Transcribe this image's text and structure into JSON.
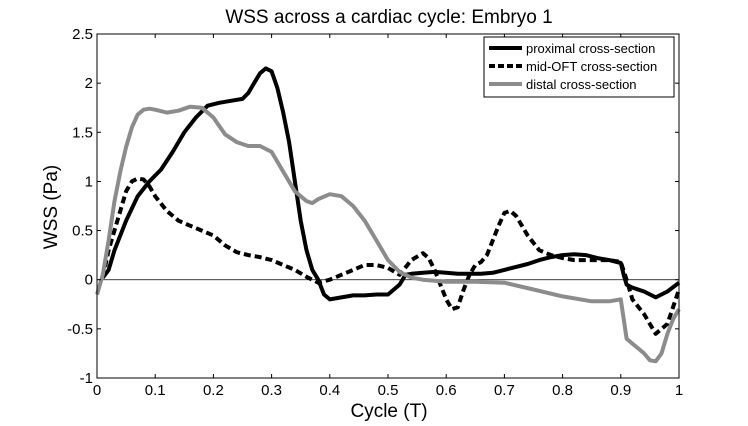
{
  "chart_data": {
    "type": "line",
    "title": "WSS across a cardiac cycle: Embryo 1",
    "xlabel": "Cycle (T)",
    "ylabel": "WSS (Pa)",
    "xlim": [
      0,
      1
    ],
    "ylim": [
      -1,
      2.5
    ],
    "x_ticks": [
      0,
      0.1,
      0.2,
      0.3,
      0.4,
      0.5,
      0.6,
      0.7,
      0.8,
      0.9,
      1
    ],
    "y_ticks": [
      -1,
      -0.5,
      0,
      0.5,
      1,
      1.5,
      2,
      2.5
    ],
    "x_tick_labels": [
      "0",
      "0.1",
      "0.2",
      "0.3",
      "0.4",
      "0.5",
      "0.6",
      "0.7",
      "0.8",
      "0.9",
      "1"
    ],
    "y_tick_labels": [
      "-1",
      "-0.5",
      "0",
      "0.5",
      "1",
      "1.5",
      "2",
      "2.5"
    ],
    "grid": false,
    "zero_line": true,
    "legend_position": "top-right",
    "series": [
      {
        "name": "proximal cross-section",
        "color": "#000000",
        "style": "solid",
        "x": [
          0.01,
          0.02,
          0.03,
          0.05,
          0.07,
          0.09,
          0.11,
          0.13,
          0.15,
          0.17,
          0.19,
          0.21,
          0.23,
          0.25,
          0.26,
          0.27,
          0.28,
          0.29,
          0.3,
          0.31,
          0.32,
          0.33,
          0.34,
          0.35,
          0.36,
          0.37,
          0.38,
          0.39,
          0.4,
          0.42,
          0.44,
          0.46,
          0.48,
          0.5,
          0.52,
          0.53,
          0.54,
          0.56,
          0.58,
          0.6,
          0.62,
          0.64,
          0.66,
          0.68,
          0.7,
          0.72,
          0.74,
          0.76,
          0.78,
          0.8,
          0.82,
          0.84,
          0.86,
          0.88,
          0.9,
          0.905,
          0.91,
          0.92,
          0.94,
          0.96,
          0.98,
          1.0
        ],
        "y": [
          0.02,
          0.1,
          0.3,
          0.6,
          0.85,
          1.0,
          1.12,
          1.3,
          1.5,
          1.65,
          1.77,
          1.8,
          1.82,
          1.84,
          1.9,
          2.0,
          2.1,
          2.15,
          2.12,
          1.95,
          1.7,
          1.4,
          1.0,
          0.6,
          0.3,
          0.1,
          0.0,
          -0.15,
          -0.2,
          -0.18,
          -0.16,
          -0.16,
          -0.15,
          -0.15,
          -0.05,
          0.05,
          0.06,
          0.07,
          0.08,
          0.07,
          0.06,
          0.06,
          0.06,
          0.07,
          0.1,
          0.13,
          0.16,
          0.2,
          0.23,
          0.25,
          0.26,
          0.25,
          0.22,
          0.2,
          0.17,
          0.05,
          -0.05,
          -0.08,
          -0.12,
          -0.18,
          -0.12,
          -0.03
        ]
      },
      {
        "name": "mid-OFT cross-section",
        "color": "#000000",
        "style": "dashed",
        "x": [
          0.01,
          0.02,
          0.04,
          0.05,
          0.06,
          0.07,
          0.08,
          0.09,
          0.1,
          0.12,
          0.14,
          0.16,
          0.18,
          0.2,
          0.22,
          0.24,
          0.26,
          0.28,
          0.3,
          0.32,
          0.34,
          0.36,
          0.38,
          0.4,
          0.42,
          0.44,
          0.46,
          0.48,
          0.5,
          0.52,
          0.54,
          0.56,
          0.57,
          0.58,
          0.59,
          0.6,
          0.61,
          0.62,
          0.63,
          0.64,
          0.65,
          0.66,
          0.67,
          0.68,
          0.69,
          0.7,
          0.71,
          0.72,
          0.73,
          0.74,
          0.76,
          0.78,
          0.8,
          0.82,
          0.84,
          0.86,
          0.88,
          0.9,
          0.91,
          0.92,
          0.94,
          0.96,
          0.98,
          1.0
        ],
        "y": [
          0.02,
          0.3,
          0.7,
          0.9,
          1.0,
          1.03,
          1.02,
          0.95,
          0.85,
          0.7,
          0.6,
          0.55,
          0.5,
          0.45,
          0.35,
          0.28,
          0.25,
          0.23,
          0.2,
          0.15,
          0.1,
          0.03,
          -0.03,
          0.0,
          0.05,
          0.1,
          0.15,
          0.15,
          0.12,
          0.05,
          0.2,
          0.27,
          0.22,
          0.1,
          -0.05,
          -0.2,
          -0.3,
          -0.28,
          -0.1,
          0.05,
          0.15,
          0.18,
          0.25,
          0.4,
          0.55,
          0.68,
          0.7,
          0.65,
          0.55,
          0.45,
          0.3,
          0.25,
          0.22,
          0.2,
          0.2,
          0.2,
          0.2,
          0.18,
          0.0,
          -0.2,
          -0.35,
          -0.55,
          -0.45,
          -0.1
        ]
      },
      {
        "name": "distal cross-section",
        "color": "#8c8c8c",
        "style": "solid",
        "x": [
          0.0,
          0.01,
          0.02,
          0.03,
          0.04,
          0.05,
          0.06,
          0.07,
          0.08,
          0.09,
          0.1,
          0.12,
          0.14,
          0.16,
          0.18,
          0.2,
          0.22,
          0.24,
          0.26,
          0.28,
          0.3,
          0.32,
          0.34,
          0.36,
          0.37,
          0.38,
          0.4,
          0.42,
          0.44,
          0.46,
          0.48,
          0.5,
          0.52,
          0.54,
          0.56,
          0.58,
          0.6,
          0.65,
          0.7,
          0.75,
          0.8,
          0.85,
          0.88,
          0.9,
          0.91,
          0.92,
          0.94,
          0.95,
          0.96,
          0.97,
          0.98,
          0.99,
          1.0
        ],
        "y": [
          -0.15,
          0.05,
          0.4,
          0.8,
          1.1,
          1.35,
          1.55,
          1.68,
          1.73,
          1.74,
          1.73,
          1.7,
          1.72,
          1.76,
          1.75,
          1.65,
          1.48,
          1.4,
          1.36,
          1.36,
          1.3,
          1.1,
          0.9,
          0.8,
          0.78,
          0.82,
          0.87,
          0.85,
          0.75,
          0.6,
          0.4,
          0.2,
          0.08,
          0.02,
          0.0,
          -0.01,
          -0.02,
          -0.02,
          -0.03,
          -0.1,
          -0.17,
          -0.22,
          -0.22,
          -0.2,
          -0.6,
          -0.65,
          -0.75,
          -0.82,
          -0.83,
          -0.75,
          -0.55,
          -0.4,
          -0.3
        ]
      }
    ]
  }
}
